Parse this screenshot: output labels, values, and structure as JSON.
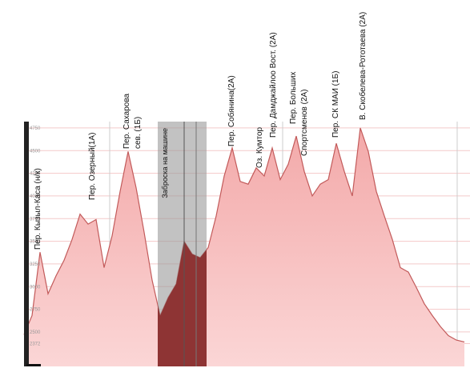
{
  "chart_data": {
    "type": "area",
    "values": [
      2470,
      2680,
      3380,
      2920,
      3120,
      3290,
      3520,
      3800,
      3690,
      3740,
      3210,
      3560,
      4050,
      4490,
      4090,
      3600,
      3070,
      2680,
      2880,
      3030,
      3500,
      3360,
      3320,
      3430,
      3780,
      4220,
      4530,
      4160,
      4130,
      4310,
      4220,
      4530,
      4180,
      4350,
      4660,
      4270,
      4000,
      4130,
      4180,
      4580,
      4270,
      4000,
      4750,
      4490,
      4050,
      3780,
      3520,
      3210,
      3160,
      2990,
      2810,
      2680,
      2560,
      2460,
      2410,
      2390
    ],
    "color": "#c25a5a",
    "ylim": [
      2120,
      4820
    ],
    "yticks": [
      2372,
      2500,
      2750,
      3000,
      3250,
      3500,
      3750,
      4000,
      4250,
      4500,
      4750
    ],
    "grid": true,
    "shaded_region_label": "Заброска на машине",
    "annotations": [
      {
        "lines": [
          "Пер. Кызыл-Каса (н/к)"
        ]
      },
      {
        "lines": [
          "Пер. Озерный(1А)"
        ]
      },
      {
        "lines": [
          "Пер. Сахарова",
          "сев. (1Б)"
        ]
      },
      {
        "lines": [
          "Пер. Собянина(2А)"
        ]
      },
      {
        "lines": [
          "Оз. Кумтор"
        ]
      },
      {
        "lines": [
          "Пер. Дамджайлоо Вост. (2А)"
        ]
      },
      {
        "lines": [
          "Пер. Больших",
          "Спортсменов (2А)"
        ]
      },
      {
        "lines": [
          "Пер. СК МАИ (1Б)"
        ]
      },
      {
        "lines": [
          "В. Скобелева-Рототаева (2А)"
        ]
      }
    ]
  }
}
